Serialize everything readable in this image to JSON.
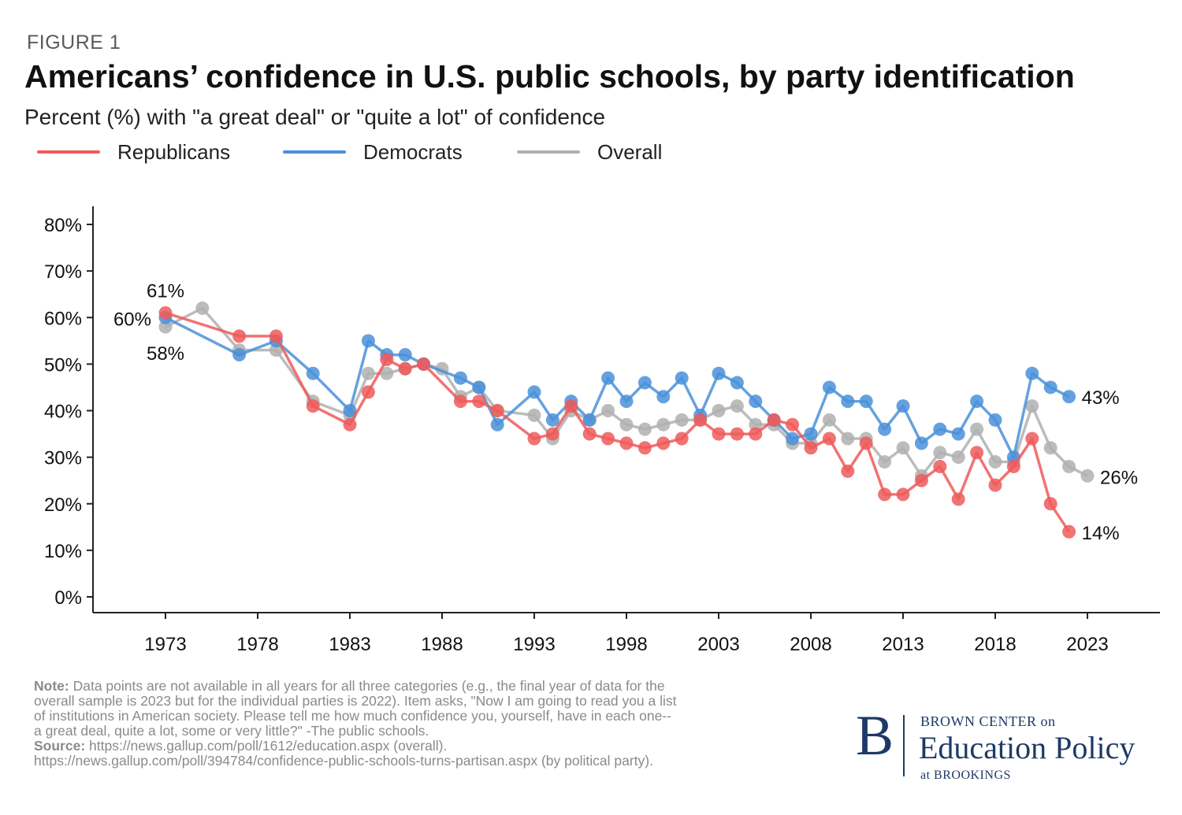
{
  "figure_label": "FIGURE 1",
  "title": "Americans’ confidence in U.S. public schools, by party identification",
  "subtitle": "Percent (%) with \"a great deal\" or \"quite a lot\" of confidence",
  "legend": [
    {
      "label": "Republicans",
      "color": "#ef5b5b"
    },
    {
      "label": "Democrats",
      "color": "#4a90d9"
    },
    {
      "label": "Overall",
      "color": "#b0b0b0"
    }
  ],
  "notes": {
    "note_head": "Note:",
    "note_line1": "Data points are not available in all years for all three categories (e.g., the final year of data for the",
    "note_line2": "overall sample is 2023 but for the individual parties is 2022). Item asks, \"Now I am going to read you a list",
    "note_line3": "of institutions in American society. Please tell me how much confidence you, yourself, have in each one--",
    "note_line4": "a great deal, quite a lot, some or very little?\" -The public schools.",
    "source_head": "Source:",
    "source_line1": "https://news.gallup.com/poll/1612/education.aspx (overall).",
    "source_line2": "https://news.gallup.com/poll/394784/confidence-public-schools-turns-partisan.aspx (by political party)."
  },
  "logo": {
    "initial": "B",
    "top": "BROWN CENTER on",
    "main": "Education Policy",
    "bottom": "at BROOKINGS"
  },
  "chart_data": {
    "type": "line",
    "xlim": [
      1969,
      2027
    ],
    "ylim": [
      0,
      80
    ],
    "x_ticks": [
      1973,
      1978,
      1983,
      1988,
      1993,
      1998,
      2003,
      2008,
      2013,
      2018,
      2023
    ],
    "x_tick_labels": [
      "1973",
      "1978",
      "1983",
      "1988",
      "1993",
      "1998",
      "2003",
      "2008",
      "2013",
      "2018",
      "2023"
    ],
    "y_ticks": [
      0,
      10,
      20,
      30,
      40,
      50,
      60,
      70,
      80
    ],
    "y_tick_labels": [
      "0%",
      "10%",
      "20%",
      "30%",
      "40%",
      "50%",
      "60%",
      "70%",
      "80%"
    ],
    "grid": false,
    "legend_position": "top",
    "series": [
      {
        "name": "Overall",
        "color": "#b0b0b0",
        "x": [
          1973,
          1975,
          1977,
          1979,
          1981,
          1983,
          1984,
          1985,
          1986,
          1987,
          1988,
          1989,
          1990,
          1991,
          1993,
          1994,
          1995,
          1996,
          1997,
          1998,
          1999,
          2000,
          2001,
          2002,
          2003,
          2004,
          2005,
          2006,
          2007,
          2008,
          2009,
          2010,
          2011,
          2012,
          2013,
          2014,
          2015,
          2016,
          2017,
          2018,
          2019,
          2020,
          2021,
          2022,
          2023
        ],
        "values": [
          58,
          62,
          53,
          53,
          42,
          39,
          48,
          48,
          49,
          50,
          49,
          43,
          45,
          40,
          39,
          34,
          40,
          38,
          40,
          37,
          36,
          37,
          38,
          38,
          40,
          41,
          37,
          37,
          33,
          33,
          38,
          34,
          34,
          29,
          32,
          26,
          31,
          30,
          36,
          29,
          29,
          41,
          32,
          28,
          26
        ]
      },
      {
        "name": "Democrats",
        "color": "#4a90d9",
        "x": [
          1973,
          1977,
          1979,
          1981,
          1983,
          1984,
          1985,
          1986,
          1987,
          1989,
          1990,
          1991,
          1993,
          1994,
          1995,
          1996,
          1997,
          1998,
          1999,
          2000,
          2001,
          2002,
          2003,
          2004,
          2005,
          2006,
          2007,
          2008,
          2009,
          2010,
          2011,
          2012,
          2013,
          2014,
          2015,
          2016,
          2017,
          2018,
          2019,
          2020,
          2021,
          2022
        ],
        "values": [
          60,
          52,
          55,
          48,
          40,
          55,
          52,
          52,
          50,
          47,
          45,
          37,
          44,
          38,
          42,
          38,
          47,
          42,
          46,
          43,
          47,
          39,
          48,
          46,
          42,
          38,
          34,
          35,
          45,
          42,
          42,
          36,
          41,
          33,
          36,
          35,
          42,
          38,
          30,
          48,
          45,
          43
        ]
      },
      {
        "name": "Republicans",
        "color": "#ef5b5b",
        "x": [
          1973,
          1977,
          1979,
          1981,
          1983,
          1984,
          1985,
          1986,
          1987,
          1989,
          1990,
          1991,
          1993,
          1994,
          1995,
          1996,
          1997,
          1998,
          1999,
          2000,
          2001,
          2002,
          2003,
          2004,
          2005,
          2006,
          2007,
          2008,
          2009,
          2010,
          2011,
          2012,
          2013,
          2014,
          2015,
          2016,
          2017,
          2018,
          2019,
          2020,
          2021,
          2022
        ],
        "values": [
          61,
          56,
          56,
          41,
          37,
          44,
          51,
          49,
          50,
          42,
          42,
          40,
          34,
          35,
          41,
          35,
          34,
          33,
          32,
          33,
          34,
          38,
          35,
          35,
          35,
          38,
          37,
          32,
          34,
          27,
          33,
          22,
          22,
          25,
          28,
          21,
          31,
          24,
          28,
          34,
          20,
          14
        ]
      }
    ],
    "annotations": [
      {
        "text": "61%",
        "series": "Republicans",
        "x": 1973,
        "y": 61
      },
      {
        "text": "60%",
        "series": "Democrats",
        "x": 1973,
        "y": 60
      },
      {
        "text": "58%",
        "series": "Overall",
        "x": 1973,
        "y": 58
      },
      {
        "text": "43%",
        "series": "Democrats",
        "x": 2022,
        "y": 43
      },
      {
        "text": "26%",
        "series": "Overall",
        "x": 2023,
        "y": 26
      },
      {
        "text": "14%",
        "series": "Republicans",
        "x": 2022,
        "y": 14
      }
    ]
  }
}
